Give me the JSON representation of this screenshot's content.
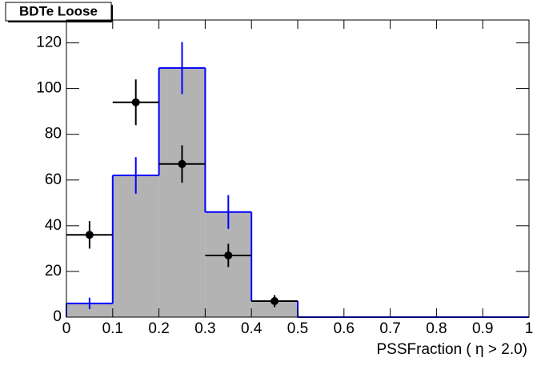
{
  "chart_data": {
    "type": "histogram",
    "title": "BDTe Loose",
    "x_label": "PSSFraction ( η > 2.0)",
    "bins": [
      0,
      0.1,
      0.2,
      0.3,
      0.4,
      0.5,
      0.6,
      0.7,
      0.8,
      0.9,
      1
    ],
    "counts": [
      6,
      62,
      109,
      46,
      7,
      0,
      0,
      0,
      0,
      0
    ],
    "errors": [
      2.5,
      8,
      11.4,
      7.4,
      2.6,
      0,
      0,
      0,
      0,
      0
    ],
    "color": "#0000ff",
    "fill": "#b3b3b3",
    "points": {
      "x": [
        0.05,
        0.15,
        0.25,
        0.35,
        0.45
      ],
      "values": [
        36,
        94,
        67,
        27,
        7
      ],
      "errors": [
        6,
        10,
        8.2,
        5.1,
        2.6
      ],
      "x_errors": [
        0.05,
        0.05,
        0.05,
        0.05,
        0.05
      ],
      "color": "#000000"
    },
    "xlim": [
      0,
      1
    ],
    "ylim": [
      0,
      130
    ],
    "xticks": [
      0,
      0.1,
      0.2,
      0.3,
      0.4,
      0.5,
      0.6,
      0.7,
      0.8,
      0.9,
      1
    ],
    "yticks": [
      0,
      20,
      40,
      60,
      80,
      100,
      120
    ]
  }
}
